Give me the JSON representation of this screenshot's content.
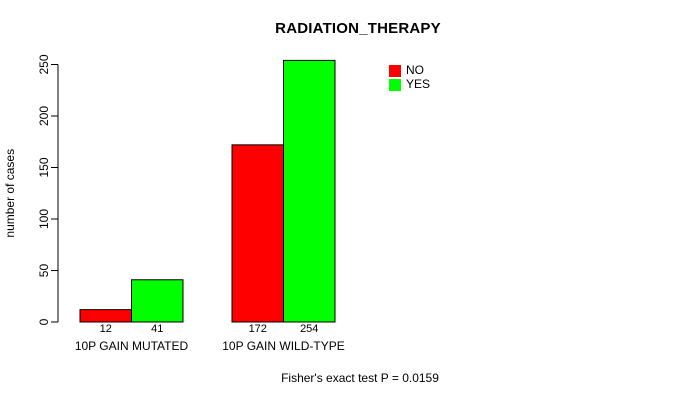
{
  "chart_data": {
    "type": "bar",
    "title": "RADIATION_THERAPY",
    "categories": [
      "10P GAIN MUTATED",
      "10P GAIN WILD-TYPE"
    ],
    "series": [
      {
        "name": "NO",
        "color": "#ff0000",
        "values": [
          12,
          172
        ]
      },
      {
        "name": "YES",
        "color": "#00ff00",
        "values": [
          41,
          254
        ]
      }
    ],
    "xlabel": "",
    "ylabel": "number of cases",
    "ylim": [
      0,
      250
    ],
    "yticks": [
      0,
      50,
      100,
      150,
      200,
      250
    ],
    "grid": false,
    "legend_position": "top-right",
    "bar_borders_color": "#000000",
    "annotation": "Fisher's exact test P = 0.0159"
  }
}
